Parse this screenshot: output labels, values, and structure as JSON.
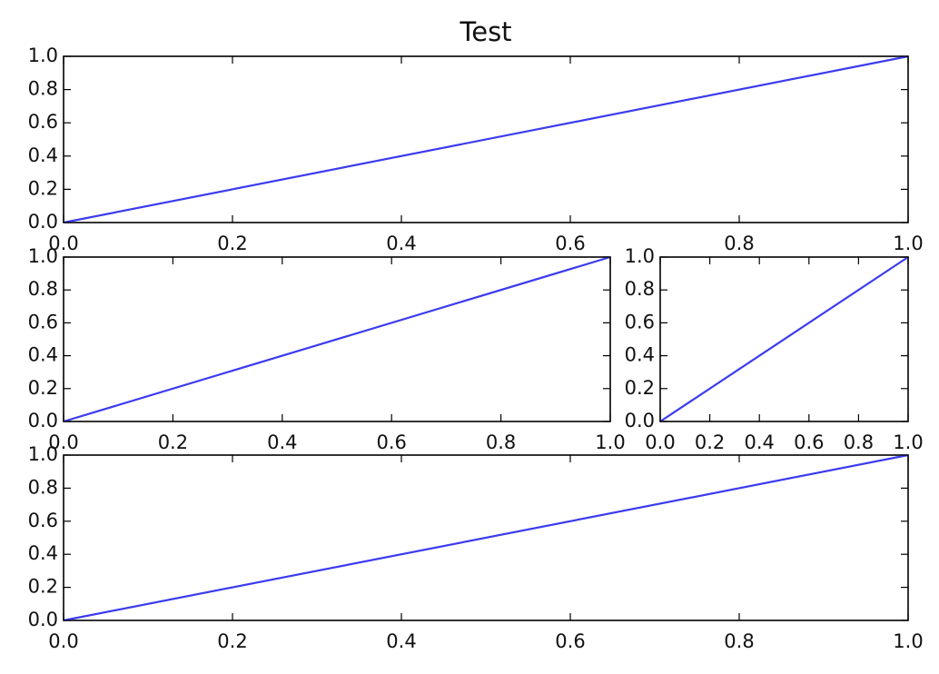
{
  "chart_data": [
    {
      "type": "line",
      "title": "Test",
      "x": [
        0,
        1
      ],
      "values": [
        0,
        1
      ],
      "color": "#3b3bf0",
      "xlim": [
        0,
        1
      ],
      "ylim": [
        0,
        1
      ],
      "xticks": [
        {
          "value": 0,
          "label": "0.0"
        },
        0.2,
        0.4,
        0.6,
        0.8,
        {
          "value": 1,
          "label": "1.0"
        }
      ],
      "yticks": [
        {
          "value": 0,
          "label": "0.0"
        },
        0.2,
        0.4,
        0.6,
        0.8,
        {
          "value": 1,
          "label": "1.0"
        }
      ]
    },
    {
      "type": "line",
      "x": [
        0,
        1
      ],
      "values": [
        0,
        1
      ],
      "color": "#3b3bf0",
      "xlim": [
        0,
        1
      ],
      "ylim": [
        0,
        1
      ],
      "xticks": [
        {
          "value": 0,
          "label": "0.0"
        },
        0.2,
        0.4,
        0.6,
        0.8,
        {
          "value": 1,
          "label": "1.0"
        }
      ],
      "yticks": [
        {
          "value": 0,
          "label": "0.0"
        },
        0.2,
        0.4,
        0.6,
        0.8,
        {
          "value": 1,
          "label": "1.0"
        }
      ]
    },
    {
      "type": "line",
      "x": [
        0,
        1
      ],
      "values": [
        0,
        1
      ],
      "color": "#3b3bf0",
      "xlim": [
        0,
        1
      ],
      "ylim": [
        0,
        1
      ],
      "xticks": [
        {
          "value": 0,
          "label": "0.0"
        },
        0.2,
        0.4,
        0.6,
        0.8,
        {
          "value": 1,
          "label": "1.0"
        }
      ],
      "yticks": [
        {
          "value": 0,
          "label": "0.0"
        },
        0.2,
        0.4,
        0.6,
        0.8,
        {
          "value": 1,
          "label": "1.0"
        }
      ]
    },
    {
      "type": "line",
      "x": [
        0,
        1
      ],
      "values": [
        0,
        1
      ],
      "color": "#3b3bf0",
      "xlim": [
        0,
        1
      ],
      "ylim": [
        0,
        1
      ],
      "xticks": [
        {
          "value": 0,
          "label": "0.0"
        },
        0.2,
        0.4,
        0.6,
        0.8,
        {
          "value": 1,
          "label": "1.0"
        }
      ],
      "yticks": [
        {
          "value": 0,
          "label": "0.0"
        },
        0.2,
        0.4,
        0.6,
        0.8,
        {
          "value": 1,
          "label": "1.0"
        }
      ]
    }
  ]
}
